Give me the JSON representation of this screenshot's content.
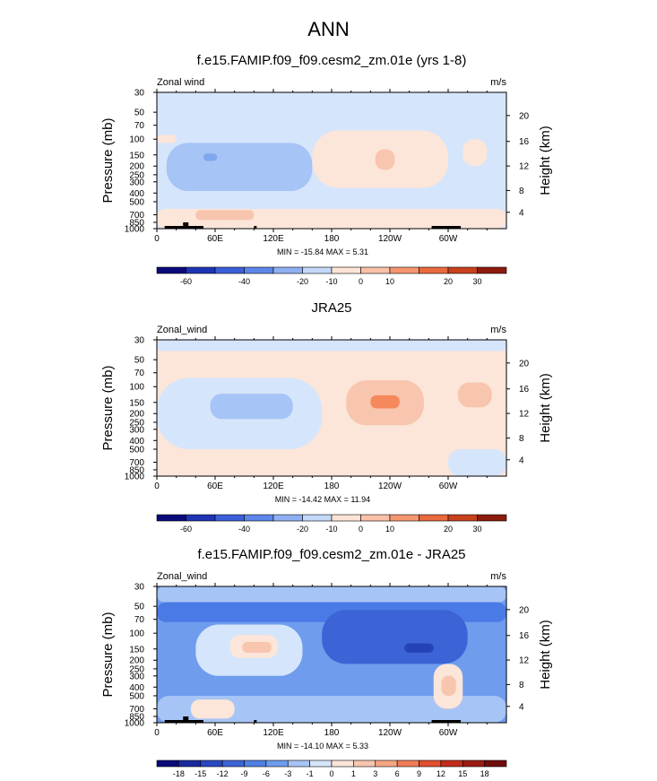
{
  "suptitle": "ANN",
  "chart_data": [
    {
      "type": "heatmap",
      "title": "f.e15.FAMIP.f09_f09.cesm2_zm.01e (yrs 1-8)",
      "variable_label": "Zonal wind",
      "units": "m/s",
      "ylabel": "Pressure (mb)",
      "right_ylabel": "Height (km)",
      "x_ticks": [
        "0",
        "60E",
        "120E",
        "180",
        "120W",
        "60W"
      ],
      "y_ticks": [
        "30",
        "50",
        "70",
        "100",
        "150",
        "200",
        "250",
        "300",
        "400",
        "500",
        "700",
        "850",
        "1000"
      ],
      "height_ticks": [
        "20",
        "16",
        "12",
        "8",
        "4"
      ],
      "min_max": "MIN = -15.84  MAX =  5.31",
      "colorbar_labels": [
        "-60",
        "-40",
        "-20",
        "-10",
        "0",
        "10",
        "20",
        "30"
      ],
      "background_color": "#d5e5fb",
      "regions": [
        {
          "category": "warm",
          "value_range": "0 to 5",
          "color": "#fce5d9",
          "lon": [
            0,
            20
          ],
          "p": [
            90,
            110
          ]
        },
        {
          "category": "warm",
          "value_range": "0 to 5",
          "color": "#fce5d9",
          "lon": [
            160,
            300
          ],
          "p": [
            80,
            350
          ]
        },
        {
          "category": "warm",
          "value_range": "0 to 5",
          "color": "#fce5d9",
          "lon": [
            0,
            360
          ],
          "p": [
            600,
            1000
          ]
        },
        {
          "category": "warm",
          "value_range": "0 to 5",
          "color": "#fce5d9",
          "lon": [
            315,
            340
          ],
          "p": [
            100,
            200
          ]
        },
        {
          "category": "warm",
          "value_range": "5 to 10",
          "color": "#f8c5ae",
          "lon": [
            225,
            245
          ],
          "p": [
            130,
            220
          ]
        },
        {
          "category": "warm",
          "value_range": "5 to 10",
          "color": "#f8c5ae",
          "lon": [
            40,
            100
          ],
          "p": [
            620,
            800
          ]
        },
        {
          "category": "cool",
          "value_range": "-10 to 0",
          "color": "#a6c4f5",
          "lon": [
            10,
            160
          ],
          "p": [
            110,
            380
          ]
        },
        {
          "category": "cool",
          "value_range": "-20 to -10",
          "color": "#7fa7ee",
          "lon": [
            48,
            62
          ],
          "p": [
            145,
            175
          ]
        }
      ]
    },
    {
      "type": "heatmap",
      "title": "JRA25",
      "variable_label": "Zonal_wind",
      "units": "m/s",
      "ylabel": "Pressure (mb)",
      "right_ylabel": "Height (km)",
      "x_ticks": [
        "0",
        "60E",
        "120E",
        "180",
        "120W",
        "60W"
      ],
      "y_ticks": [
        "30",
        "50",
        "70",
        "100",
        "150",
        "200",
        "250",
        "300",
        "400",
        "500",
        "700",
        "850",
        "1000"
      ],
      "height_ticks": [
        "20",
        "16",
        "12",
        "8",
        "4"
      ],
      "min_max": "MIN = -14.42  MAX =  11.94",
      "colorbar_labels": [
        "-60",
        "-40",
        "-20",
        "-10",
        "0",
        "10",
        "20",
        "30"
      ],
      "background_color": "#fce5d9",
      "regions": [
        {
          "category": "cool",
          "value_range": "-10 to 0",
          "color": "#d5e5fb",
          "lon": [
            0,
            360
          ],
          "p": [
            30,
            40
          ]
        },
        {
          "category": "cool",
          "value_range": "-10 to 0",
          "color": "#d5e5fb",
          "lon": [
            0,
            170
          ],
          "p": [
            80,
            500
          ]
        },
        {
          "category": "cool",
          "value_range": "-10 to 0",
          "color": "#d5e5fb",
          "lon": [
            300,
            360
          ],
          "p": [
            500,
            1000
          ]
        },
        {
          "category": "cool",
          "value_range": "-10 to -5",
          "color": "#a6c4f5",
          "lon": [
            55,
            140
          ],
          "p": [
            120,
            230
          ]
        },
        {
          "category": "warm",
          "value_range": "5 to 10",
          "color": "#f8c5ae",
          "lon": [
            195,
            275
          ],
          "p": [
            85,
            270
          ]
        },
        {
          "category": "warm",
          "value_range": "5 to 10",
          "color": "#f8c5ae",
          "lon": [
            310,
            345
          ],
          "p": [
            90,
            170
          ]
        },
        {
          "category": "warm",
          "value_range": "10 to 15",
          "color": "#f5895c",
          "lon": [
            220,
            250
          ],
          "p": [
            125,
            175
          ]
        }
      ]
    },
    {
      "type": "heatmap",
      "title": "f.e15.FAMIP.f09_f09.cesm2_zm.01e - JRA25",
      "variable_label": "Zonal_wind",
      "units": "m/s",
      "ylabel": "Pressure (mb)",
      "right_ylabel": "Height (km)",
      "x_ticks": [
        "0",
        "60E",
        "120E",
        "180",
        "120W",
        "60W"
      ],
      "y_ticks": [
        "30",
        "50",
        "70",
        "100",
        "150",
        "200",
        "250",
        "300",
        "400",
        "500",
        "700",
        "850",
        "1000"
      ],
      "height_ticks": [
        "20",
        "16",
        "12",
        "8",
        "4"
      ],
      "min_max": "MIN = -14.10  MAX =  5.33",
      "colorbar_labels": [
        "-18",
        "-15",
        "-12",
        "-9",
        "-6",
        "-3",
        "-1",
        "0",
        "1",
        "3",
        "6",
        "9",
        "12",
        "15",
        "18"
      ],
      "background_color": "#6f9ced",
      "regions": [
        {
          "category": "cool",
          "value_range": "-3 to -1",
          "color": "#a6c4f5",
          "lon": [
            0,
            360
          ],
          "p": [
            30,
            45
          ]
        },
        {
          "category": "cool",
          "value_range": "-6 to -3",
          "color": "#4a7ae6",
          "lon": [
            0,
            360
          ],
          "p": [
            45,
            75
          ]
        },
        {
          "category": "cool",
          "value_range": "-1 to 0",
          "color": "#d5e5fb",
          "lon": [
            40,
            150
          ],
          "p": [
            80,
            300
          ]
        },
        {
          "category": "warm",
          "value_range": "0 to 1",
          "color": "#fce5d9",
          "lon": [
            75,
            125
          ],
          "p": [
            105,
            190
          ]
        },
        {
          "category": "warm",
          "value_range": "1 to 3",
          "color": "#f8c5ae",
          "lon": [
            88,
            118
          ],
          "p": [
            125,
            165
          ]
        },
        {
          "category": "cool",
          "value_range": "-9 to -6",
          "color": "#3c64d6",
          "lon": [
            170,
            320
          ],
          "p": [
            55,
            220
          ]
        },
        {
          "category": "cool",
          "value_range": "-12 to -9",
          "color": "#2443b8",
          "lon": [
            255,
            285
          ],
          "p": [
            130,
            165
          ]
        },
        {
          "category": "cool",
          "value_range": "-3 to -1",
          "color": "#a6c4f5",
          "lon": [
            0,
            360
          ],
          "p": [
            500,
            1000
          ]
        },
        {
          "category": "warm",
          "value_range": "0 to 1",
          "color": "#fce5d9",
          "lon": [
            35,
            80
          ],
          "p": [
            550,
            900
          ]
        },
        {
          "category": "warm",
          "value_range": "0 to 1",
          "color": "#fce5d9",
          "lon": [
            285,
            315
          ],
          "p": [
            220,
            700
          ]
        },
        {
          "category": "warm",
          "value_range": "1 to 3",
          "color": "#f8c5ae",
          "lon": [
            293,
            308
          ],
          "p": [
            300,
            500
          ]
        }
      ]
    }
  ],
  "colorbar_colors": {
    "twelve": [
      "#0a0a7a",
      "#1f34b5",
      "#3b5fd9",
      "#5d86e9",
      "#8eb0f2",
      "#c4d8f8",
      "#fde4d6",
      "#f8c1a8",
      "#f5966f",
      "#e86a3e",
      "#c8401c",
      "#8c1a0d"
    ],
    "sixteen": [
      "#0a0a7a",
      "#1a2a9e",
      "#2a48c4",
      "#3c64d6",
      "#4f80e2",
      "#6f9ced",
      "#a6c4f5",
      "#d5e5fb",
      "#fce5d9",
      "#f8c5ae",
      "#f4a582",
      "#ee7c57",
      "#e04e2e",
      "#c12e1b",
      "#9b1c12",
      "#700d0d"
    ]
  }
}
